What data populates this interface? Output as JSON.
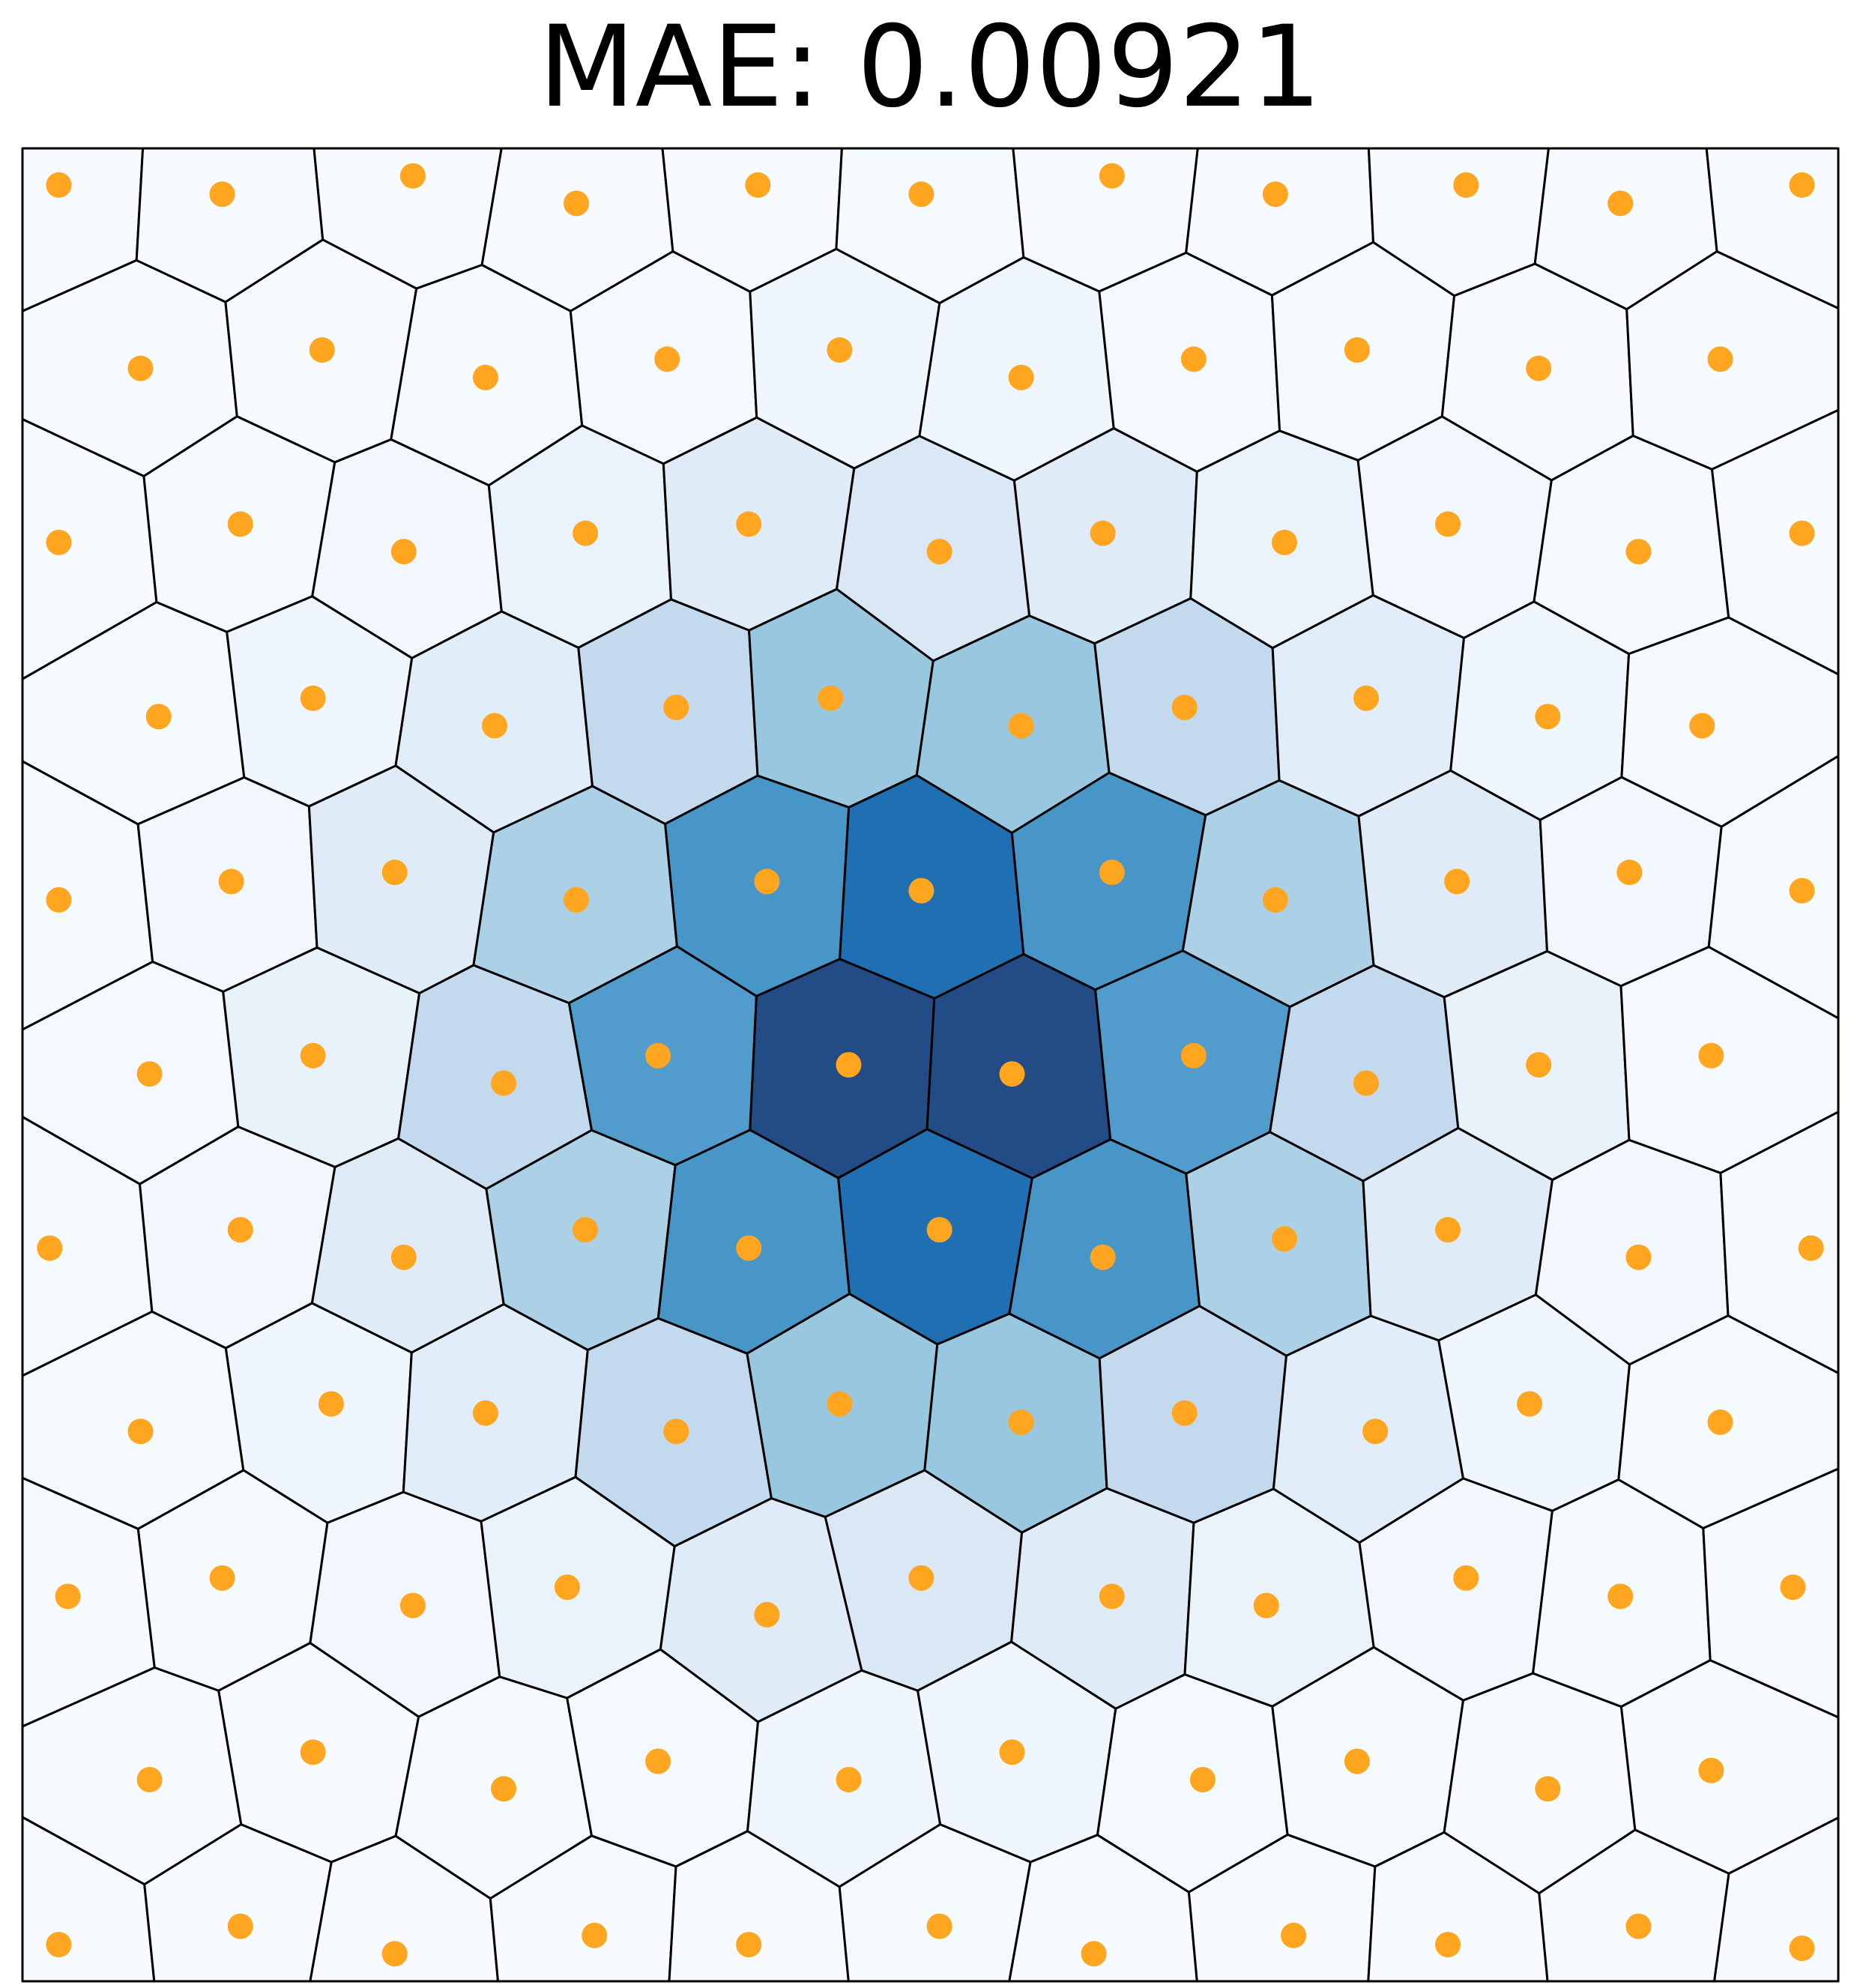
{
  "chart_data": {
    "type": "voronoi",
    "title": "MAE: 0.00921",
    "xlim": [
      0,
      1
    ],
    "ylim": [
      0,
      1
    ],
    "x": [
      0.02,
      0.12,
      0.205,
      0.315,
      0.4,
      0.505,
      0.59,
      0.7,
      0.785,
      0.89,
      0.98,
      0.07,
      0.16,
      0.265,
      0.35,
      0.455,
      0.545,
      0.65,
      0.735,
      0.84,
      0.93,
      0.025,
      0.11,
      0.215,
      0.3,
      0.41,
      0.495,
      0.6,
      0.685,
      0.795,
      0.88,
      0.975,
      0.065,
      0.17,
      0.255,
      0.36,
      0.45,
      0.55,
      0.64,
      0.745,
      0.83,
      0.935,
      0.015,
      0.12,
      0.21,
      0.31,
      0.4,
      0.505,
      0.595,
      0.695,
      0.785,
      0.89,
      0.985,
      0.07,
      0.16,
      0.265,
      0.35,
      0.455,
      0.545,
      0.645,
      0.74,
      0.835,
      0.93,
      0.02,
      0.115,
      0.205,
      0.305,
      0.41,
      0.495,
      0.6,
      0.69,
      0.79,
      0.885,
      0.98,
      0.075,
      0.16,
      0.26,
      0.36,
      0.445,
      0.55,
      0.64,
      0.74,
      0.84,
      0.925,
      0.02,
      0.12,
      0.21,
      0.31,
      0.4,
      0.505,
      0.595,
      0.695,
      0.785,
      0.89,
      0.98,
      0.065,
      0.165,
      0.255,
      0.355,
      0.45,
      0.55,
      0.645,
      0.735,
      0.835,
      0.935,
      0.02,
      0.11,
      0.215,
      0.305,
      0.405,
      0.495,
      0.6,
      0.69,
      0.795,
      0.88,
      0.98
    ],
    "y": [
      0.02,
      0.03,
      0.015,
      0.025,
      0.02,
      0.03,
      0.015,
      0.025,
      0.02,
      0.03,
      0.018,
      0.11,
      0.125,
      0.105,
      0.12,
      0.11,
      0.125,
      0.11,
      0.12,
      0.105,
      0.115,
      0.21,
      0.22,
      0.205,
      0.215,
      0.2,
      0.22,
      0.21,
      0.205,
      0.22,
      0.21,
      0.215,
      0.3,
      0.315,
      0.31,
      0.3,
      0.315,
      0.305,
      0.31,
      0.3,
      0.315,
      0.305,
      0.4,
      0.41,
      0.395,
      0.41,
      0.4,
      0.41,
      0.395,
      0.405,
      0.41,
      0.395,
      0.4,
      0.495,
      0.505,
      0.49,
      0.505,
      0.5,
      0.495,
      0.505,
      0.49,
      0.5,
      0.505,
      0.59,
      0.6,
      0.605,
      0.59,
      0.6,
      0.595,
      0.605,
      0.59,
      0.6,
      0.605,
      0.595,
      0.69,
      0.7,
      0.685,
      0.695,
      0.7,
      0.685,
      0.695,
      0.7,
      0.69,
      0.685,
      0.785,
      0.795,
      0.78,
      0.79,
      0.795,
      0.78,
      0.79,
      0.785,
      0.795,
      0.78,
      0.79,
      0.88,
      0.89,
      0.875,
      0.885,
      0.89,
      0.875,
      0.885,
      0.89,
      0.88,
      0.885,
      0.98,
      0.975,
      0.985,
      0.97,
      0.98,
      0.975,
      0.985,
      0.975,
      0.98,
      0.97,
      0.98
    ],
    "values": [
      0,
      0,
      0,
      0,
      0,
      0.01,
      0,
      0,
      0,
      0,
      0,
      0,
      0,
      0.01,
      0.02,
      0.04,
      0.04,
      0.02,
      0.01,
      0,
      0,
      0,
      0.01,
      0.03,
      0.07,
      0.13,
      0.16,
      0.13,
      0.07,
      0.03,
      0.01,
      0,
      0.01,
      0.04,
      0.12,
      0.28,
      0.42,
      0.42,
      0.28,
      0.12,
      0.04,
      0.01,
      0.01,
      0.03,
      0.13,
      0.36,
      0.66,
      0.82,
      0.66,
      0.36,
      0.13,
      0.03,
      0.01,
      0.02,
      0.08,
      0.28,
      0.63,
      0.95,
      0.95,
      0.63,
      0.28,
      0.08,
      0.02,
      0.01,
      0.03,
      0.13,
      0.36,
      0.66,
      0.82,
      0.66,
      0.36,
      0.13,
      0.03,
      0.01,
      0.01,
      0.04,
      0.12,
      0.28,
      0.42,
      0.42,
      0.28,
      0.12,
      0.04,
      0.01,
      0,
      0.01,
      0.03,
      0.07,
      0.13,
      0.16,
      0.13,
      0.07,
      0.03,
      0.01,
      0,
      0,
      0,
      0.01,
      0.02,
      0.04,
      0.04,
      0.02,
      0.01,
      0,
      0,
      0,
      0,
      0,
      0,
      0,
      0.01,
      0,
      0,
      0,
      0,
      0
    ],
    "colormap": [
      "#f7fbff",
      "#deebf7",
      "#c6dbef",
      "#9ecae1",
      "#6baed6",
      "#4292c6",
      "#2171b5",
      "#234b86"
    ],
    "point_color": "#ffa51f",
    "edge_color": "#000000"
  }
}
